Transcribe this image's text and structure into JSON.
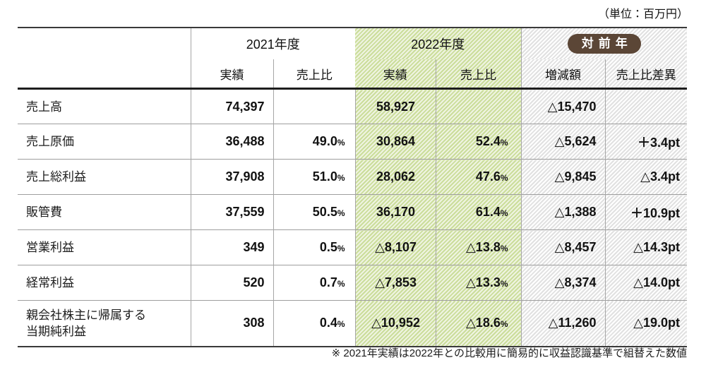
{
  "unit_note": "（単位：百万円）",
  "header": {
    "groups": [
      {
        "label": "2021年度",
        "style": "plain"
      },
      {
        "label": "2022年度",
        "style": "green"
      },
      {
        "label": "対前年",
        "style": "gray-badge"
      }
    ],
    "subheaders": [
      "実績",
      "売上比",
      "実績",
      "売上比",
      "増減額",
      "売上比差異"
    ]
  },
  "rows": [
    {
      "label_lines": [
        "売上高"
      ],
      "cells": [
        "74,397",
        "",
        "58,927",
        "",
        "△15,470",
        ""
      ]
    },
    {
      "label_lines": [
        "売上原価"
      ],
      "cells": [
        "36,488",
        "49.0%",
        "30,864",
        "52.4%",
        "△5,624",
        "＋3.4pt"
      ]
    },
    {
      "label_lines": [
        "売上総利益"
      ],
      "cells": [
        "37,908",
        "51.0%",
        "28,062",
        "47.6%",
        "△9,845",
        "△3.4pt"
      ]
    },
    {
      "label_lines": [
        "販管費"
      ],
      "cells": [
        "37,559",
        "50.5%",
        "36,170",
        "61.4%",
        "△1,388",
        "＋10.9pt"
      ]
    },
    {
      "label_lines": [
        "営業利益"
      ],
      "cells": [
        "349",
        "0.5%",
        "△8,107",
        "△13.8%",
        "△8,457",
        "△14.3pt"
      ]
    },
    {
      "label_lines": [
        "経常利益"
      ],
      "cells": [
        "520",
        "0.7%",
        "△7,853",
        "△13.3%",
        "△8,374",
        "△14.0pt"
      ]
    },
    {
      "label_lines": [
        "親会社株主に帰属する",
        "当期純利益"
      ],
      "cells": [
        "308",
        "0.4%",
        "△10,952",
        "△18.6%",
        "△11,260",
        "△19.0pt"
      ]
    }
  ],
  "footnote": "※ 2021年実績は2022年との比較用に簡易的に収益認識基準で組替えた数値",
  "colors": {
    "accent_green_stripe": "#cbdd9b",
    "accent_green_base": "#eff4e1",
    "gray_stripe": "#e1e1e1",
    "badge_brown": "#5b4636",
    "badge_text": "#ffffff",
    "grid_line": "#9e9e9e",
    "heavy_line": "#1d1d1d"
  }
}
